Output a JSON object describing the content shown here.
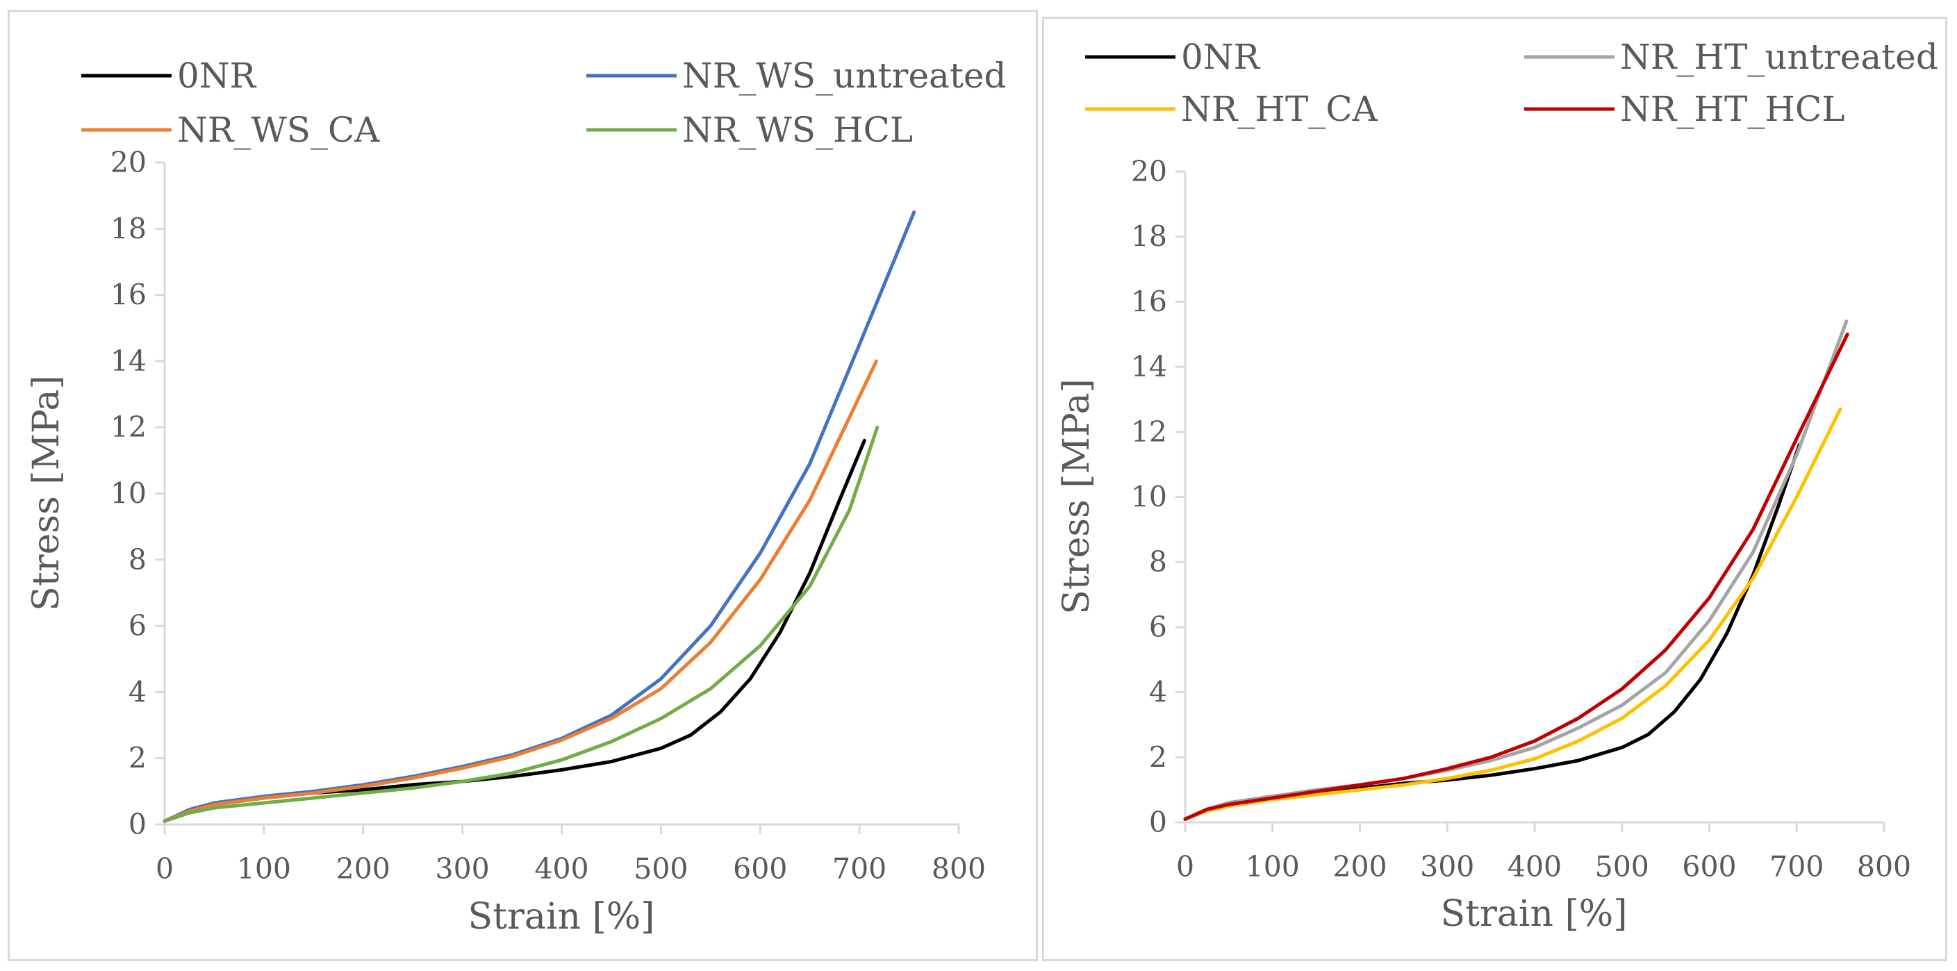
{
  "chart_data": [
    {
      "type": "line",
      "xlabel": "Strain [%]",
      "ylabel": "Stress [MPa]",
      "xlim": [
        0,
        800
      ],
      "ylim": [
        0,
        20
      ],
      "x_ticks": [
        "0",
        "100",
        "200",
        "300",
        "400",
        "500",
        "600",
        "700",
        "800"
      ],
      "y_ticks": [
        "0",
        "2",
        "4",
        "6",
        "8",
        "10",
        "12",
        "14",
        "16",
        "18",
        "20"
      ],
      "grid": false,
      "legend_position": "top",
      "series": [
        {
          "name": "0NR",
          "color": "#000000",
          "x": [
            0,
            25,
            50,
            100,
            150,
            200,
            250,
            300,
            350,
            400,
            450,
            500,
            530,
            560,
            590,
            620,
            650,
            680,
            705
          ],
          "y": [
            0.1,
            0.4,
            0.6,
            0.8,
            0.95,
            1.05,
            1.2,
            1.3,
            1.45,
            1.65,
            1.9,
            2.3,
            2.7,
            3.4,
            4.4,
            5.8,
            7.6,
            9.8,
            11.6
          ]
        },
        {
          "name": "NR_WS_untreated",
          "color": "#4472C4",
          "x": [
            0,
            25,
            50,
            100,
            150,
            200,
            250,
            300,
            350,
            400,
            450,
            500,
            550,
            600,
            650,
            700,
            755
          ],
          "y": [
            0.1,
            0.45,
            0.65,
            0.85,
            1.0,
            1.2,
            1.45,
            1.75,
            2.1,
            2.6,
            3.3,
            4.4,
            6.0,
            8.2,
            10.9,
            14.5,
            18.5
          ]
        },
        {
          "name": "NR_WS_CA",
          "color": "#ED7D31",
          "x": [
            0,
            25,
            50,
            100,
            150,
            200,
            250,
            300,
            350,
            400,
            450,
            500,
            550,
            600,
            650,
            690,
            717
          ],
          "y": [
            0.1,
            0.4,
            0.6,
            0.8,
            0.95,
            1.15,
            1.4,
            1.7,
            2.05,
            2.55,
            3.2,
            4.1,
            5.5,
            7.4,
            9.8,
            12.3,
            14.0
          ]
        },
        {
          "name": "NR_WS_HCL",
          "color": "#70AD47",
          "x": [
            0,
            25,
            50,
            100,
            150,
            200,
            250,
            300,
            350,
            400,
            450,
            500,
            550,
            600,
            650,
            690,
            718
          ],
          "y": [
            0.1,
            0.35,
            0.5,
            0.65,
            0.8,
            0.95,
            1.1,
            1.3,
            1.55,
            1.95,
            2.5,
            3.2,
            4.1,
            5.4,
            7.2,
            9.5,
            12.0
          ]
        }
      ]
    },
    {
      "type": "line",
      "xlabel": "Strain [%]",
      "ylabel": "Stress [MPa]",
      "xlim": [
        0,
        800
      ],
      "ylim": [
        0,
        20
      ],
      "x_ticks": [
        "0",
        "100",
        "200",
        "300",
        "400",
        "500",
        "600",
        "700",
        "800"
      ],
      "y_ticks": [
        "0",
        "2",
        "4",
        "6",
        "8",
        "10",
        "12",
        "14",
        "16",
        "18",
        "20"
      ],
      "grid": false,
      "legend_position": "top",
      "series": [
        {
          "name": "0NR",
          "color": "#000000",
          "x": [
            0,
            25,
            50,
            100,
            150,
            200,
            250,
            300,
            350,
            400,
            450,
            500,
            530,
            560,
            590,
            620,
            650,
            680,
            703
          ],
          "y": [
            0.1,
            0.4,
            0.6,
            0.8,
            0.95,
            1.05,
            1.2,
            1.3,
            1.45,
            1.65,
            1.9,
            2.3,
            2.7,
            3.4,
            4.4,
            5.8,
            7.6,
            9.8,
            11.6
          ]
        },
        {
          "name": "NR_HT_untreated",
          "color": "#A5A5A5",
          "x": [
            0,
            25,
            50,
            100,
            150,
            200,
            250,
            300,
            350,
            400,
            450,
            500,
            550,
            600,
            650,
            700,
            757
          ],
          "y": [
            0.1,
            0.4,
            0.6,
            0.8,
            1.0,
            1.15,
            1.35,
            1.6,
            1.9,
            2.3,
            2.9,
            3.6,
            4.6,
            6.2,
            8.3,
            11.3,
            15.4
          ]
        },
        {
          "name": "NR_HT_CA",
          "color": "#FFC000",
          "x": [
            0,
            25,
            50,
            100,
            150,
            200,
            250,
            300,
            350,
            400,
            450,
            500,
            550,
            600,
            650,
            700,
            750
          ],
          "y": [
            0.1,
            0.35,
            0.5,
            0.7,
            0.85,
            1.0,
            1.15,
            1.35,
            1.6,
            1.95,
            2.5,
            3.2,
            4.2,
            5.6,
            7.5,
            10.0,
            12.7
          ]
        },
        {
          "name": "NR_HT_HCL",
          "color": "#C00000",
          "x": [
            0,
            25,
            50,
            100,
            150,
            200,
            250,
            300,
            350,
            400,
            450,
            500,
            550,
            600,
            650,
            700,
            758
          ],
          "y": [
            0.1,
            0.4,
            0.55,
            0.75,
            0.95,
            1.15,
            1.35,
            1.65,
            2.0,
            2.5,
            3.2,
            4.1,
            5.3,
            6.9,
            9.0,
            11.8,
            15.0
          ]
        }
      ]
    }
  ]
}
